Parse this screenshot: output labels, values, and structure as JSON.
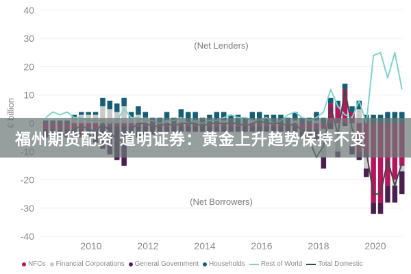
{
  "overlay": {
    "headline": "福州期货配资 道明证券：黄金上升趋势保持不变"
  },
  "legend": [
    {
      "label": "NFCs",
      "color": "#b5175e",
      "kind": "dot"
    },
    {
      "label": "Financial Corporations",
      "color": "#c9c9c9",
      "kind": "dot"
    },
    {
      "label": "General Government",
      "color": "#4a1f4f",
      "kind": "dot"
    },
    {
      "label": "Households",
      "color": "#155e75",
      "kind": "dot"
    },
    {
      "label": "Rest of World",
      "color": "#7fd3cc",
      "kind": "line"
    },
    {
      "label": "Total Domestic",
      "color": "#3a4a48",
      "kind": "line"
    }
  ],
  "chart_data": {
    "type": "bar",
    "title": "",
    "xlabel": "",
    "ylabel": "€ billion",
    "ylim": [
      -40,
      40
    ],
    "yticks": [
      40,
      30,
      20,
      10,
      0,
      -10,
      -20,
      -30,
      -40
    ],
    "xtick_labels": [
      "2010",
      "2012",
      "2014",
      "2016",
      "2018",
      "2020"
    ],
    "annotations": [
      "(Net Lenders)",
      "(Net Borrowers)"
    ],
    "grid": true,
    "legend_position": "bottom",
    "x_start": "2008Q3",
    "x_end": "2020Q4",
    "frequency": "quarterly",
    "stacked": true,
    "series": [
      {
        "name": "NFCs",
        "type": "bar",
        "color": "#b5175e",
        "values": [
          -2,
          -2,
          -2,
          -2,
          -2,
          -2,
          -2,
          -2,
          -1,
          -1,
          -1,
          -1,
          -1,
          -1,
          -1,
          -1,
          -1,
          -1,
          -1,
          -1,
          -1,
          -1,
          -1,
          -1,
          -1,
          -1,
          -1,
          -1,
          -1,
          -1,
          -1,
          -1,
          -1,
          -1,
          -1,
          -1,
          -2,
          -2,
          -2,
          -2,
          7,
          6,
          12,
          4,
          -10,
          -12,
          -28,
          -28,
          -22,
          -20,
          -15
        ]
      },
      {
        "name": "Financial Corporations",
        "type": "bar",
        "color": "#c9c9c9",
        "values": [
          0,
          0,
          0,
          0,
          2,
          3,
          3,
          3,
          6,
          5,
          4,
          6,
          2,
          3,
          2,
          0,
          0,
          1,
          0,
          2,
          0,
          1,
          0,
          0,
          0,
          1,
          0,
          0,
          0,
          1,
          0,
          0,
          0,
          0,
          0,
          1,
          0,
          0,
          1,
          -10,
          0,
          -10,
          0,
          -8,
          5,
          -4,
          0,
          0,
          0,
          -2,
          -2
        ]
      },
      {
        "name": "General Government",
        "type": "bar",
        "color": "#4a1f4f",
        "values": [
          -3,
          -3,
          -3,
          -3,
          -3,
          -3,
          -4,
          -5,
          -8,
          -10,
          -12,
          -14,
          -5,
          -4,
          -3,
          -3,
          -2,
          -2,
          -2,
          -2,
          -2,
          -2,
          -2,
          -2,
          -2,
          -2,
          -2,
          -2,
          -2,
          -2,
          -2,
          -2,
          -2,
          -2,
          -2,
          -2,
          -3,
          -3,
          -4,
          -4,
          -2,
          -2,
          -1,
          -3,
          -3,
          -3,
          -4,
          -4,
          -6,
          -6,
          -8
        ]
      },
      {
        "name": "Households",
        "type": "bar",
        "color": "#155e75",
        "values": [
          1,
          1,
          1,
          1,
          1,
          1,
          1,
          1,
          3,
          3,
          3,
          3,
          2,
          3,
          2,
          2,
          2,
          3,
          2,
          3,
          4,
          3,
          2,
          3,
          4,
          3,
          3,
          3,
          2,
          3,
          4,
          3,
          3,
          3,
          2,
          3,
          2,
          2,
          3,
          2,
          2,
          2,
          2,
          2,
          3,
          3,
          3,
          3,
          4,
          4,
          4
        ]
      },
      {
        "name": "Rest of World",
        "type": "line",
        "color": "#7fd3cc",
        "values": [
          2,
          4,
          3,
          4,
          2,
          2,
          1,
          1,
          1,
          0,
          1,
          5,
          2,
          2,
          1,
          1,
          0,
          1,
          1,
          2,
          0,
          1,
          0,
          1,
          1,
          2,
          3,
          2,
          2,
          1,
          1,
          2,
          0,
          1,
          3,
          4,
          2,
          1,
          2,
          4,
          12,
          6,
          3,
          2,
          8,
          0,
          24,
          25,
          16,
          25,
          12
        ]
      },
      {
        "name": "Total Domestic",
        "type": "line",
        "color": "#3a4a48",
        "values": [
          -4,
          -4,
          -4,
          -4,
          -2,
          -1,
          -2,
          -3,
          0,
          -3,
          -6,
          -6,
          -2,
          0,
          0,
          -1,
          -1,
          0,
          -1,
          0,
          0,
          0,
          -1,
          0,
          0,
          0,
          0,
          0,
          -1,
          0,
          1,
          0,
          0,
          0,
          -1,
          0,
          -3,
          -6,
          -12,
          -8,
          6,
          -4,
          12,
          -2,
          -6,
          -10,
          -25,
          -25,
          -13,
          -22,
          -14
        ]
      }
    ]
  }
}
